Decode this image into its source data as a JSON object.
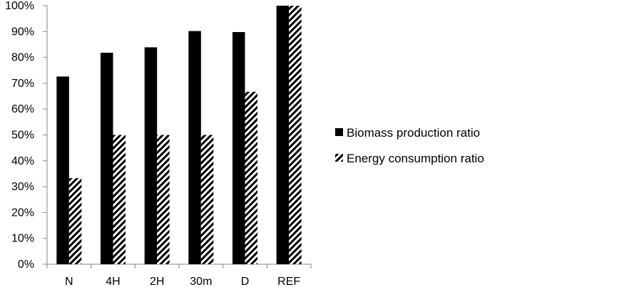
{
  "chart_data": {
    "type": "bar",
    "title": "",
    "xlabel": "",
    "ylabel": "",
    "categories": [
      "N",
      "4H",
      "2H",
      "30m",
      "D",
      "REF"
    ],
    "series": [
      {
        "name": "Biomass production ratio",
        "fill": "solid",
        "color": "#000000",
        "values": [
          72.6,
          81.8,
          83.9,
          90.2,
          89.8,
          100
        ]
      },
      {
        "name": "Energy consumption ratio",
        "fill": "hatched",
        "color": "#000000",
        "values": [
          33.3,
          50,
          50,
          50,
          66.7,
          100
        ]
      }
    ],
    "ylim": [
      0,
      100
    ],
    "yticks": [
      "0%",
      "10%",
      "20%",
      "30%",
      "40%",
      "50%",
      "60%",
      "70%",
      "80%",
      "90%",
      "100%"
    ],
    "grid": false,
    "legend_position": "right"
  }
}
